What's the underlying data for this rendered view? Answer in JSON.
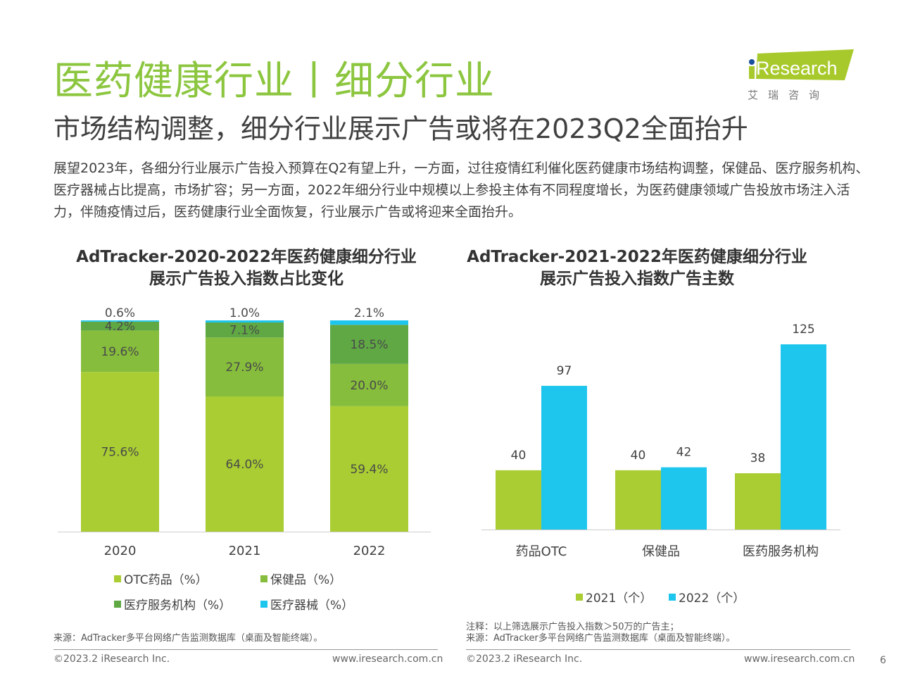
{
  "header": {
    "title": "医药健康行业丨细分行业",
    "subtitle": "市场结构调整，细分行业展示广告或将在2023Q2全面抬升",
    "intro": "展望2023年，各细分行业展示广告投入预算在Q2有望上升，一方面，过往疫情红利催化医药健康市场结构调整，保健品、医疗服务机构、医疗器械占比提高，市场扩容；另一方面，2022年细分行业中规模以上参投主体有不同程度增长，为医药健康领域广告投放市场注入活力，伴随疫情过后，医药健康行业全面恢复，行业展示广告或将迎来全面抬升。",
    "logo_text": "iResearch",
    "logo_cn": "艾 瑞 咨 询",
    "logo_color": "#a8c92b"
  },
  "chart_data": [
    {
      "type": "bar",
      "stacked": true,
      "title": "AdTracker-2020-2022年医药健康细分行业\n展示广告投入指数占比变化",
      "categories": [
        "2020",
        "2021",
        "2022"
      ],
      "ylim": [
        0,
        100
      ],
      "grid": false,
      "legend_position": "bottom",
      "series": [
        {
          "name": "OTC药品（%）",
          "color": "#a9cd32",
          "values": [
            75.6,
            64.0,
            59.4
          ],
          "labels": [
            "75.6%",
            "64.0%",
            "59.4%"
          ]
        },
        {
          "name": "保健品（%）",
          "color": "#86bd3c",
          "values": [
            19.6,
            27.9,
            20.0
          ],
          "labels": [
            "19.6%",
            "27.9%",
            "20.0%"
          ]
        },
        {
          "name": "医疗服务机构（%）",
          "color": "#5fa844",
          "values": [
            4.2,
            7.1,
            18.5
          ],
          "labels": [
            "4.2%",
            "7.1%",
            "18.5%"
          ]
        },
        {
          "name": "医疗器械（%）",
          "color": "#1ec5ed",
          "values": [
            0.6,
            1.0,
            2.1
          ],
          "labels": [
            "0.6%",
            "1.0%",
            "2.1%"
          ]
        }
      ],
      "source": "来源：AdTracker多平台网络广告监测数据库（桌面及智能终端）。"
    },
    {
      "type": "bar",
      "stacked": false,
      "title": "AdTracker-2021-2022年医药健康细分行业\n展示广告投入指数广告主数",
      "categories": [
        "药品OTC",
        "保健品",
        "医药服务机构"
      ],
      "ylim": [
        0,
        125
      ],
      "grid": false,
      "legend_position": "bottom",
      "series": [
        {
          "name": "2021（个）",
          "color": "#a9cd32",
          "values": [
            40,
            40,
            38
          ]
        },
        {
          "name": "2022（个）",
          "color": "#1ec5ed",
          "values": [
            97,
            42,
            125
          ]
        }
      ],
      "note": "注释：以上筛选展示广告投入指数＞50万的广告主；",
      "source": "来源：AdTracker多平台网络广告监测数据库（桌面及智能终端）。"
    }
  ],
  "footer": {
    "copyright": "©2023.2 iResearch Inc.",
    "url": "www.iresearch.com.cn",
    "page": "6"
  }
}
